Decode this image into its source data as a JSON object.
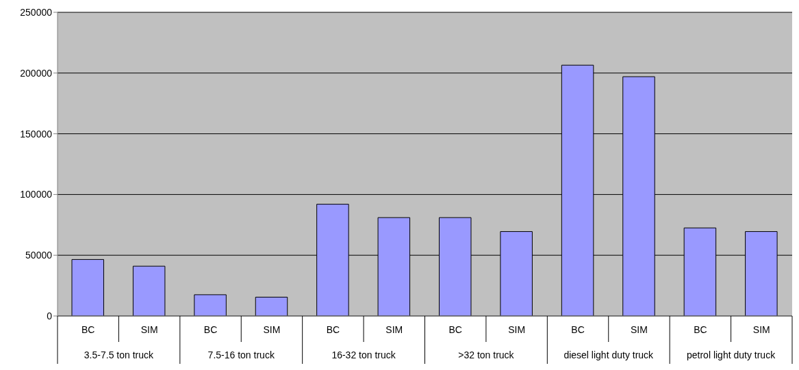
{
  "chart_data": {
    "type": "bar",
    "categories": [
      "BC",
      "SIM",
      "BC",
      "SIM",
      "BC",
      "SIM",
      "BC",
      "SIM",
      "BC",
      "SIM",
      "BC",
      "SIM"
    ],
    "values": [
      46500,
      41000,
      17500,
      15500,
      92000,
      81000,
      81000,
      69500,
      206500,
      197000,
      72500,
      69500
    ],
    "color": "#9999ff",
    "ylim": [
      0,
      250000
    ],
    "yticks": [
      0,
      50000,
      100000,
      150000,
      200000,
      250000
    ],
    "grid": "y",
    "legend": false,
    "annotations": [
      "3.5-7.5 ton truck",
      "7.5-16 ton truck",
      "16-32 ton truck",
      ">32  ton truck",
      "diesel light duty truck",
      "petrol light duty truck"
    ]
  }
}
